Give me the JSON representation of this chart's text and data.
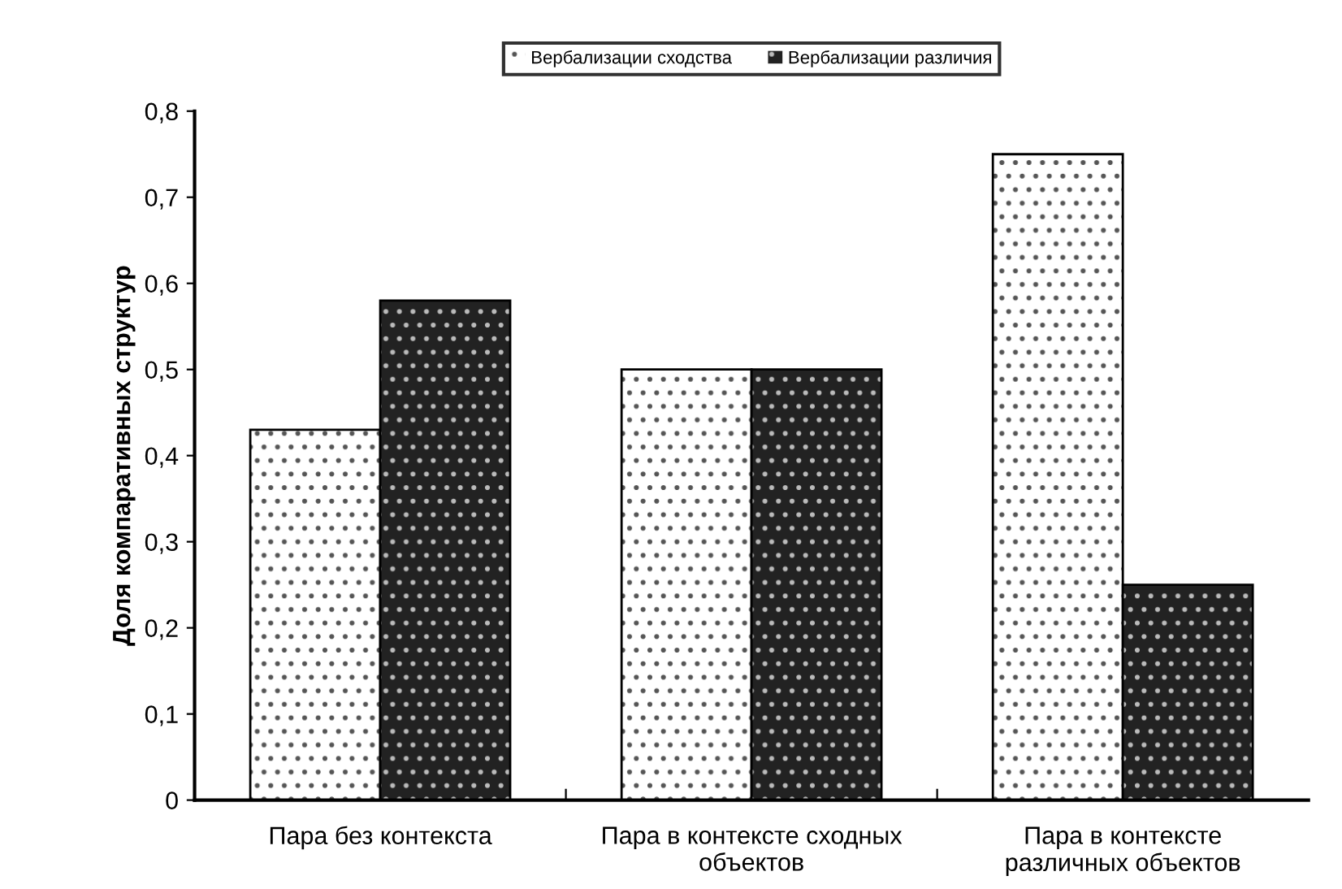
{
  "chart_data": {
    "type": "bar",
    "ylabel": "Доля компаративных структур",
    "categories": [
      "Пара без контекста",
      "Пара в контексте сходных\nобъектов",
      "Пара в контексте\nразличных объектов"
    ],
    "series": [
      {
        "name": "Вербализации сходства",
        "color": "#ffffff",
        "values": [
          0.43,
          0.5,
          0.75
        ]
      },
      {
        "name": "Вербализации различия",
        "color": "#222222",
        "values": [
          0.58,
          0.5,
          0.25
        ]
      }
    ],
    "ylim": [
      0,
      0.8
    ],
    "yticks": [
      0,
      {
        "value": 0.1,
        "label": "0,1"
      },
      {
        "value": 0.2,
        "label": "0,2"
      },
      {
        "value": 0.3,
        "label": "0,3"
      },
      {
        "value": 0.4,
        "label": "0,4"
      },
      {
        "value": 0.5,
        "label": "0,5"
      },
      {
        "value": 0.6,
        "label": "0,6"
      },
      {
        "value": 0.7,
        "label": "0,7"
      },
      {
        "value": 0.8,
        "label": "0,8"
      }
    ],
    "legend": "top",
    "grid": false
  }
}
